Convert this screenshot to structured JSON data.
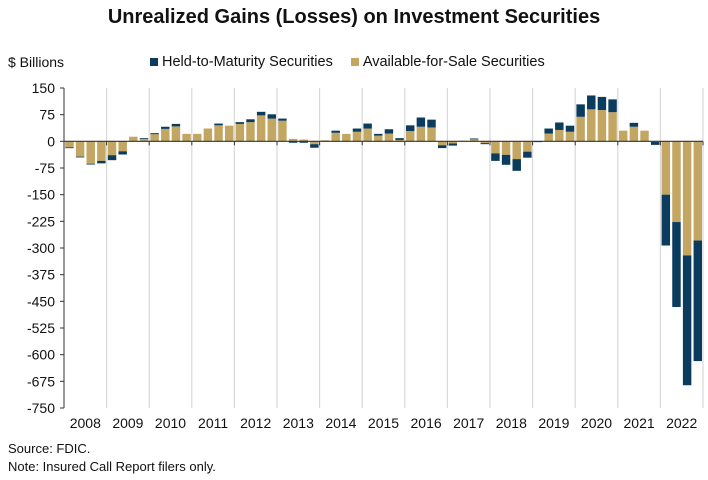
{
  "colors": {
    "htm": "#0b3c5d",
    "afs": "#c2a662",
    "grid": "#d9d9d9",
    "axis": "#333333"
  },
  "chart_data": {
    "type": "bar",
    "stacked": true,
    "title": "Unrealized Gains (Losses) on Investment Securities",
    "ylabel": "$ Billions",
    "xlabel": "",
    "ylim": [
      -750,
      150
    ],
    "yticks": [
      150,
      75,
      0,
      -75,
      -150,
      -225,
      -300,
      -375,
      -450,
      -525,
      -600,
      -675,
      -750
    ],
    "years": [
      "2008",
      "2009",
      "2010",
      "2011",
      "2012",
      "2013",
      "2014",
      "2015",
      "2016",
      "2017",
      "2018",
      "2019",
      "2020",
      "2021",
      "2022"
    ],
    "x_granularity": "quarterly",
    "legend_position": "top",
    "grid": "vertical year separators",
    "series": [
      {
        "name": "Held-to-Maturity Securities",
        "values": [
          -2,
          -2,
          -2,
          -7,
          -14,
          -9,
          0,
          2,
          3,
          6,
          7,
          0,
          0,
          0,
          5,
          0,
          5,
          8,
          10,
          12,
          6,
          -4,
          -4,
          -10,
          0,
          6,
          0,
          9,
          14,
          5,
          12,
          5,
          16,
          26,
          22,
          -8,
          -6,
          0,
          2,
          -3,
          -21,
          -28,
          -33,
          -17,
          -2,
          14,
          21,
          17,
          35,
          39,
          37,
          36,
          0,
          11,
          0,
          -8,
          -143,
          -239,
          -365,
          -339
        ]
      },
      {
        "name": "Available-for-Sale Securities",
        "values": [
          -17,
          -43,
          -63,
          -55,
          -39,
          -28,
          13,
          7,
          20,
          35,
          42,
          21,
          21,
          36,
          45,
          44,
          49,
          54,
          73,
          64,
          58,
          7,
          5,
          -8,
          3,
          24,
          21,
          27,
          36,
          16,
          22,
          4,
          29,
          41,
          39,
          -11,
          -6,
          2,
          6,
          -5,
          -34,
          -38,
          -50,
          -29,
          0,
          22,
          32,
          27,
          69,
          90,
          88,
          82,
          30,
          41,
          30,
          -2,
          -150,
          -227,
          -321,
          -279
        ]
      }
    ]
  },
  "footer": {
    "source": "Source: FDIC.",
    "note": "Note: Insured Call Report filers only."
  }
}
